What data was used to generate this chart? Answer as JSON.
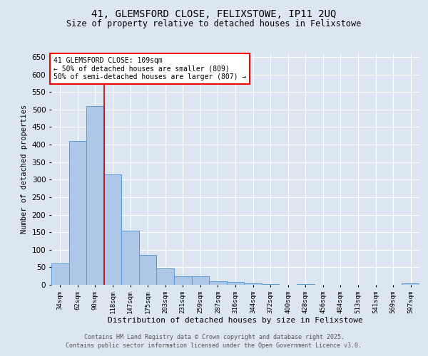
{
  "title_line1": "41, GLEMSFORD CLOSE, FELIXSTOWE, IP11 2UQ",
  "title_line2": "Size of property relative to detached houses in Felixstowe",
  "xlabel": "Distribution of detached houses by size in Felixstowe",
  "ylabel": "Number of detached properties",
  "annotation_line1": "41 GLEMSFORD CLOSE: 109sqm",
  "annotation_line2": "← 50% of detached houses are smaller (809)",
  "annotation_line3": "50% of semi-detached houses are larger (807) →",
  "categories": [
    "34sqm",
    "62sqm",
    "90sqm",
    "118sqm",
    "147sqm",
    "175sqm",
    "203sqm",
    "231sqm",
    "259sqm",
    "287sqm",
    "316sqm",
    "344sqm",
    "372sqm",
    "400sqm",
    "428sqm",
    "456sqm",
    "484sqm",
    "513sqm",
    "541sqm",
    "569sqm",
    "597sqm"
  ],
  "values": [
    60,
    410,
    510,
    315,
    155,
    85,
    47,
    25,
    25,
    10,
    8,
    5,
    2,
    0,
    3,
    0,
    0,
    0,
    0,
    0,
    5
  ],
  "bar_color": "#aec6e8",
  "bar_edge_color": "#5b9bd5",
  "vline_color": "#cc0000",
  "ylim": [
    0,
    660
  ],
  "yticks": [
    0,
    50,
    100,
    150,
    200,
    250,
    300,
    350,
    400,
    450,
    500,
    550,
    600,
    650
  ],
  "background_color": "#dce6f0",
  "plot_bg_color": "#dce6f0",
  "grid_color": "#ffffff",
  "footnote_line1": "Contains HM Land Registry data © Crown copyright and database right 2025.",
  "footnote_line2": "Contains public sector information licensed under the Open Government Licence v3.0."
}
